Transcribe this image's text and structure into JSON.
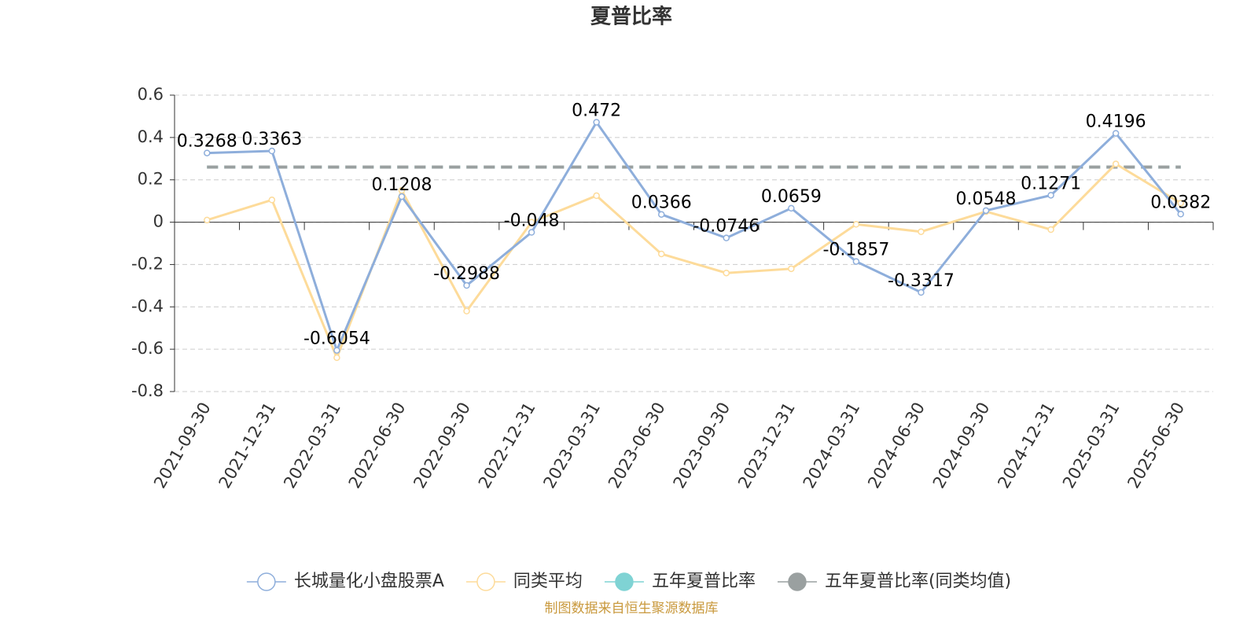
{
  "chart_data": {
    "type": "line",
    "title": "夏普比率",
    "categories": [
      "2021-09-30",
      "2021-12-31",
      "2022-03-31",
      "2022-06-30",
      "2022-09-30",
      "2022-12-31",
      "2023-03-31",
      "2023-06-30",
      "2023-09-30",
      "2023-12-31",
      "2024-03-31",
      "2024-06-30",
      "2024-09-30",
      "2024-12-31",
      "2025-03-31",
      "2025-06-30"
    ],
    "series": [
      {
        "name": "长城量化小盘股票A",
        "color": "#8eaedb",
        "values": [
          0.3268,
          0.3363,
          -0.6054,
          0.1208,
          -0.2988,
          -0.048,
          0.472,
          0.0366,
          -0.0746,
          0.0659,
          -0.1857,
          -0.3317,
          0.0548,
          0.1271,
          0.4196,
          0.0382
        ]
      },
      {
        "name": "同类平均",
        "color": "#fddb9a",
        "values": [
          0.01,
          0.105,
          -0.64,
          0.15,
          -0.42,
          0.0,
          0.125,
          -0.15,
          -0.24,
          -0.22,
          -0.01,
          -0.045,
          0.05,
          -0.035,
          0.275,
          0.09
        ]
      }
    ],
    "reference_lines": [
      {
        "name": "五年夏普比率",
        "color": "#7fd3d4",
        "value": 0.26
      },
      {
        "name": "五年夏普比率(同类均值)",
        "color": "#9aa0a0",
        "value": 0.26
      }
    ],
    "ylim": [
      -0.8,
      0.6
    ],
    "yticks": [
      -0.8,
      -0.6,
      -0.4,
      -0.2,
      0,
      0.2,
      0.4,
      0.6
    ],
    "grid": true,
    "legend": "bottom",
    "source": "制图数据来自恒生聚源数据库"
  }
}
